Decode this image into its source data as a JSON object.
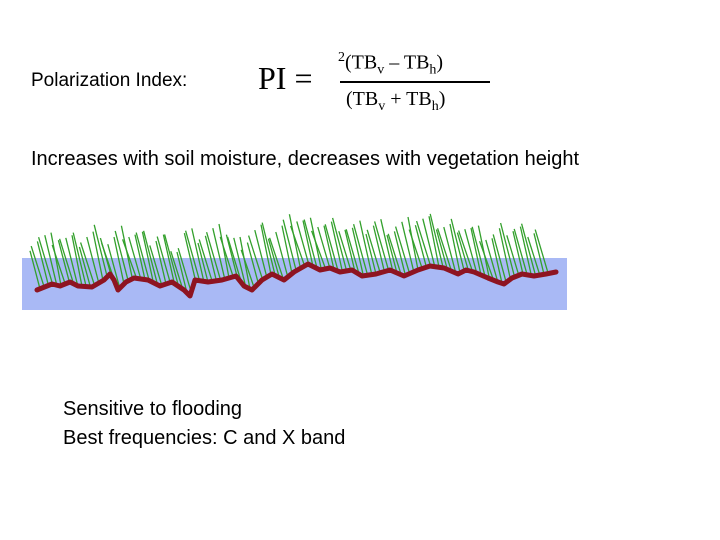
{
  "slide": {
    "pi_label": "Polarization Index:",
    "formula": {
      "lhs": "PI =",
      "numerator_coefficient": "2",
      "numerator_open": "(TB",
      "numerator_v": "v",
      "numerator_mid": " – TB",
      "numerator_h": "h",
      "numerator_close": ")",
      "denominator_open": "(TB",
      "denominator_v": "v",
      "denominator_mid": " + TB",
      "denominator_h": "h",
      "denominator_close": ")"
    },
    "statement": "Increases with soil moisture, decreases with vegetation height",
    "illustration": {
      "vegetation_color": "#33a02c",
      "water_color": "#a9b9f5",
      "soil_color": "#8e1421"
    },
    "notes": [
      "Sensitive to flooding",
      "Best frequencies: C and X band"
    ]
  }
}
